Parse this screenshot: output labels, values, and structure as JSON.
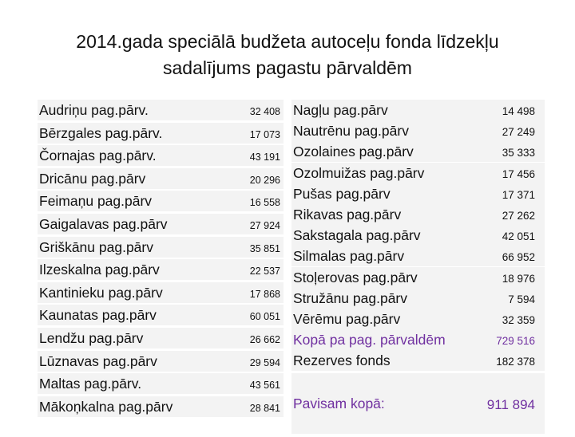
{
  "title": {
    "line1": "2014.gada speciālā budžeta autoceļu fonda līdzekļu",
    "line2": "sadalījums pagastu pārvaldēm"
  },
  "left_table": [
    {
      "name": "Audriņu pag.pārv.",
      "value": "32 408"
    },
    {
      "name": "Bērzgales pag.pārv.",
      "value": "17 073"
    },
    {
      "name": "Čornajas pag.pārv.",
      "value": "43 191"
    },
    {
      "name": "Dricānu  pag.pārv",
      "value": "20 296"
    },
    {
      "name": "Feimaņu  pag.pārv",
      "value": "16 558"
    },
    {
      "name": "Gaigalavas  pag.pārv",
      "value": "27 924"
    },
    {
      "name": "Griškānu  pag.pārv",
      "value": "35 851"
    },
    {
      "name": "Ilzeskalna  pag.pārv",
      "value": "22 537"
    },
    {
      "name": "Kantinieku  pag.pārv",
      "value": "17 868"
    },
    {
      "name": "Kaunatas  pag.pārv",
      "value": "60 051"
    },
    {
      "name": "Lendžu  pag.pārv",
      "value": "26 662"
    },
    {
      "name": "Lūznavas  pag.pārv",
      "value": "29 594"
    },
    {
      "name": "Maltas pag.pārv.",
      "value": "43 561"
    },
    {
      "name": "Mākoņkalna  pag.pārv",
      "value": "28 841"
    }
  ],
  "right_table": [
    {
      "name": "Nagļu pag.pārv",
      "value": "14 498"
    },
    {
      "name": "Nautrēnu pag.pārv",
      "value": "27 249"
    },
    {
      "name": "Ozolaines pag.pārv",
      "value": "35 333"
    },
    {
      "name": "Ozolmuižas pag.pārv",
      "value": "17 456"
    },
    {
      "name": "Pušas pag.pārv",
      "value": "17 371"
    },
    {
      "name": "Rikavas pag.pārv",
      "value": "27 262"
    },
    {
      "name": "Sakstagala pag.pārv",
      "value": "42 051"
    },
    {
      "name": "Silmalas pag.pārv",
      "value": "66 952"
    },
    {
      "name": "Stoļerovas pag.pārv",
      "value": "18 976"
    },
    {
      "name": "Stružānu pag.pārv",
      "value": "7 594"
    },
    {
      "name": "Vērēmu pag.pārv",
      "value": "32 359"
    }
  ],
  "totals": {
    "parvaldes_label": "Kopā pa pag. pārvaldēm",
    "parvaldes_value": "729 516",
    "reserve_label": "Rezerves fonds",
    "reserve_value": "182 378",
    "grand_label": "Pavisam kopā:",
    "grand_value": "911 894",
    "accent_color": "#7030a0"
  }
}
